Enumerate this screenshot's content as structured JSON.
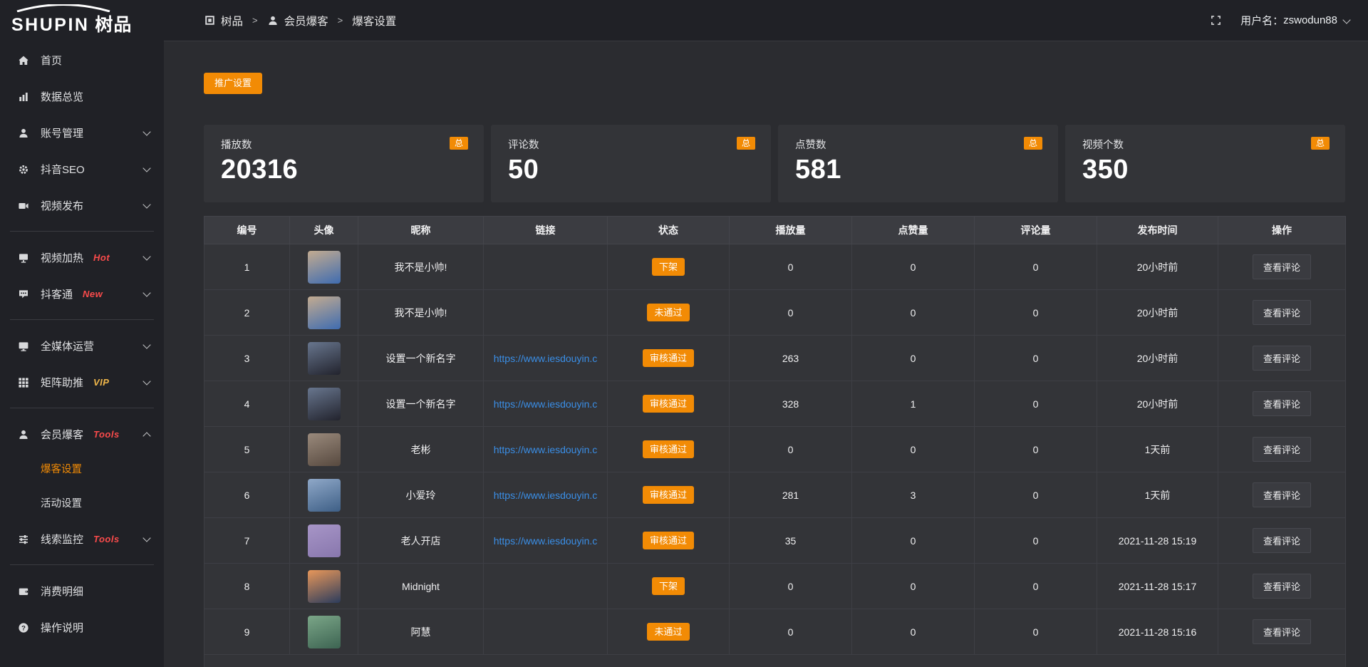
{
  "colors": {
    "accent": "#f28b05",
    "link": "#3a8ee6",
    "hot_badge": "#fa4b4b",
    "vip_badge": "#f0b74a",
    "active_menu": "#f28b05"
  },
  "sidebar": {
    "logo": {
      "en": "SHUPIN",
      "cn": "树品"
    },
    "sections": [
      {
        "items": [
          {
            "key": "home",
            "icon": "home-icon",
            "label": "首页"
          },
          {
            "key": "data-overview",
            "icon": "bar-chart-icon",
            "label": "数据总览"
          },
          {
            "key": "account-manage",
            "icon": "user-icon",
            "label": "账号管理",
            "chevron": "down"
          },
          {
            "key": "douyin-seo",
            "icon": "gear-icon",
            "label": "抖音SEO",
            "chevron": "down"
          },
          {
            "key": "video-publish",
            "icon": "video-publish-icon",
            "label": "视频发布",
            "chevron": "down"
          }
        ]
      },
      {
        "items": [
          {
            "key": "video-heat",
            "icon": "screen-icon",
            "label": "视频加热",
            "badge": "Hot",
            "badge_color": "#fa4b4b",
            "chevron": "down"
          },
          {
            "key": "douketong",
            "icon": "comment-icon",
            "label": "抖客通",
            "badge": "New",
            "badge_color": "#fa4b4b",
            "chevron": "down"
          }
        ]
      },
      {
        "items": [
          {
            "key": "media-operation",
            "icon": "monitor-icon",
            "label": "全媒体运营",
            "chevron": "down"
          },
          {
            "key": "matrix-boost",
            "icon": "matrix-icon",
            "label": "矩阵助推",
            "badge": "VIP",
            "badge_color": "#f0b74a",
            "chevron": "down"
          }
        ]
      },
      {
        "items": [
          {
            "key": "member-baoke",
            "icon": "member-icon",
            "label": "会员爆客",
            "badge": "Tools",
            "badge_color": "#fa4b4b",
            "chevron": "up",
            "children": [
              {
                "label": "爆客设置",
                "active": true
              },
              {
                "label": "活动设置",
                "active": false
              }
            ]
          },
          {
            "key": "clue-monitor",
            "icon": "sliders-icon",
            "label": "线索监控",
            "badge": "Tools",
            "badge_color": "#fa4b4b",
            "chevron": "down"
          }
        ]
      },
      {
        "items": [
          {
            "key": "spend-detail",
            "icon": "wallet-icon",
            "label": "消费明细"
          },
          {
            "key": "operation-guide",
            "icon": "question-icon",
            "label": "操作说明"
          }
        ]
      }
    ]
  },
  "topbar": {
    "breadcrumb": [
      {
        "icon": "app-icon",
        "label": "树品"
      },
      {
        "icon": "user-icon",
        "label": "会员爆客"
      },
      {
        "icon": "",
        "label": "爆客设置"
      }
    ],
    "separator": ">",
    "user_label": "用户名：",
    "username": "zswodun88"
  },
  "main": {
    "promo_button": "推广设置",
    "stat_cards": [
      {
        "label": "播放数",
        "value": "20316",
        "badge": "总"
      },
      {
        "label": "评论数",
        "value": "50",
        "badge": "总"
      },
      {
        "label": "点赞数",
        "value": "581",
        "badge": "总"
      },
      {
        "label": "视频个数",
        "value": "350",
        "badge": "总"
      }
    ],
    "table": {
      "columns": [
        "编号",
        "头像",
        "昵称",
        "链接",
        "状态",
        "播放量",
        "点赞量",
        "评论量",
        "发布时间",
        "操作"
      ],
      "action_label": "查看评论",
      "rows": [
        {
          "id": "1",
          "nickname": "我不是小帅!",
          "link": "",
          "status": "下架",
          "plays": "0",
          "likes": "0",
          "comments": "0",
          "time": "20小时前",
          "avatar": [
            "#c3ab90",
            "#3f6cb0"
          ]
        },
        {
          "id": "2",
          "nickname": "我不是小帅!",
          "link": "",
          "status": "未通过",
          "plays": "0",
          "likes": "0",
          "comments": "0",
          "time": "20小时前",
          "avatar": [
            "#c3ab90",
            "#3f6cb0"
          ]
        },
        {
          "id": "3",
          "nickname": "设置一个新名字",
          "link": "https://www.iesdouyin.c",
          "status": "审核通过",
          "plays": "263",
          "likes": "0",
          "comments": "0",
          "time": "20小时前",
          "avatar": [
            "#68768e",
            "#22232d"
          ]
        },
        {
          "id": "4",
          "nickname": "设置一个新名字",
          "link": "https://www.iesdouyin.c",
          "status": "审核通过",
          "plays": "328",
          "likes": "1",
          "comments": "0",
          "time": "20小时前",
          "avatar": [
            "#68768e",
            "#22232d"
          ]
        },
        {
          "id": "5",
          "nickname": "老彬",
          "link": "https://www.iesdouyin.c",
          "status": "审核通过",
          "plays": "0",
          "likes": "0",
          "comments": "0",
          "time": "1天前",
          "avatar": [
            "#9a8a7c",
            "#57493f"
          ]
        },
        {
          "id": "6",
          "nickname": "小爱玲",
          "link": "https://www.iesdouyin.c",
          "status": "审核通过",
          "plays": "281",
          "likes": "3",
          "comments": "0",
          "time": "1天前",
          "avatar": [
            "#8fa8c8",
            "#3e5f86"
          ]
        },
        {
          "id": "7",
          "nickname": "老人开店",
          "link": "https://www.iesdouyin.c",
          "status": "审核通过",
          "plays": "35",
          "likes": "0",
          "comments": "0",
          "time": "2021-11-28 15:19",
          "avatar": [
            "#a795c7",
            "#8877ad"
          ]
        },
        {
          "id": "8",
          "nickname": "Midnight",
          "link": "",
          "status": "下架",
          "plays": "0",
          "likes": "0",
          "comments": "0",
          "time": "2021-11-28 15:17",
          "avatar": [
            "#e8975a",
            "#2c3c5c"
          ]
        },
        {
          "id": "9",
          "nickname": "阿慧",
          "link": "",
          "status": "未通过",
          "plays": "0",
          "likes": "0",
          "comments": "0",
          "time": "2021-11-28 15:16",
          "avatar": [
            "#7ba688",
            "#3d6452"
          ]
        }
      ]
    }
  }
}
